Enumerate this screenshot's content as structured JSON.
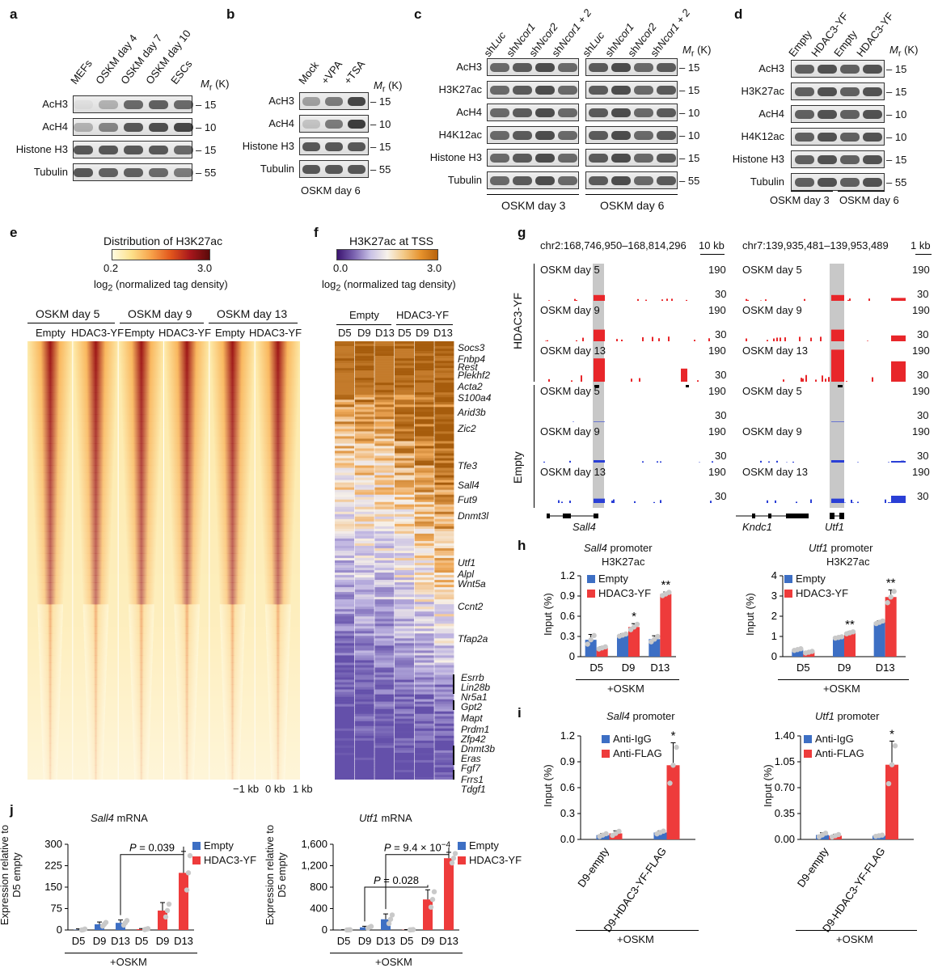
{
  "panels": {
    "a": "a",
    "b": "b",
    "c": "c",
    "d": "d",
    "e": "e",
    "f": "f",
    "g": "g",
    "h": "h",
    "i": "i",
    "j": "j"
  },
  "mr": "M",
  "mr_sub": "r",
  "mr_unit": " (K)",
  "blot_a": {
    "cols": [
      "MEFs",
      "OSKM day 4",
      "OSKM day 7",
      "OSKM day 10",
      "ESCs"
    ],
    "rows": [
      "AcH3",
      "AcH4",
      "Histone H3",
      "Tubulin"
    ],
    "mw": [
      "15",
      "10",
      "15",
      "55"
    ]
  },
  "blot_b": {
    "cols": [
      "Mock",
      "+VPA",
      "+TSA"
    ],
    "rows": [
      "AcH3",
      "AcH4",
      "Histone H3",
      "Tubulin"
    ],
    "mw": [
      "15",
      "10",
      "15",
      "55"
    ],
    "footer": "OSKM day 6"
  },
  "blot_c": {
    "cols": [
      "shLuc",
      "shNcor1",
      "shNcor2",
      "shNcor1 + 2",
      "shLuc",
      "shNcor1",
      "shNcor2",
      "shNcor1 + 2"
    ],
    "rows": [
      "AcH3",
      "H3K27ac",
      "AcH4",
      "H4K12ac",
      "Histone H3",
      "Tubulin"
    ],
    "mw": [
      "15",
      "15",
      "10",
      "10",
      "15",
      "55"
    ],
    "footer": [
      "OSKM day 3",
      "OSKM day 6"
    ]
  },
  "blot_d": {
    "cols": [
      "Empty",
      "HDAC3-YF",
      "Empty",
      "HDAC3-YF"
    ],
    "rows": [
      "AcH3",
      "H3K27ac",
      "AcH4",
      "H4K12ac",
      "Histone H3",
      "Tubulin"
    ],
    "mw": [
      "15",
      "15",
      "10",
      "10",
      "15",
      "55"
    ],
    "footer": [
      "OSKM day 3",
      "OSKM day 6"
    ]
  },
  "heat_e": {
    "title": "Distribution of H3K27ac",
    "scale_min": "0.2",
    "scale_max": "3.0",
    "scale_label_pre": "log",
    "scale_label_sub": "2",
    "scale_label_post": " (normalized tag density)",
    "groups": [
      "OSKM day 5",
      "OSKM day 9",
      "OSKM day 13"
    ],
    "subs": [
      "Empty",
      "HDAC3-YF",
      "Empty",
      "HDAC3-YF",
      "Empty",
      "HDAC3-YF"
    ],
    "xticks": [
      "−1 kb",
      "0 kb",
      "1 kb"
    ]
  },
  "heat_f": {
    "title": "H3K27ac at TSS",
    "scale_min": "0.0",
    "scale_max": "3.0",
    "scale_label_pre": "log",
    "scale_label_sub": "2",
    "scale_label_post": " (normalized tag density)",
    "groups": [
      "Empty",
      "HDAC3-YF"
    ],
    "subs": [
      "D5",
      "D9",
      "D13",
      "D5",
      "D9",
      "D13"
    ],
    "genes": [
      "Socs3",
      "Fnbp4",
      "Rest",
      "Plekhf2",
      "Acta2",
      "S100a4",
      "Arid3b",
      "Zic2",
      "Tfe3",
      "Sall4",
      "Fut9",
      "Dnmt3l",
      "Utf1",
      "Alpl",
      "Wnt5a",
      "Ccnt2",
      "Tfap2a",
      "Esrrb",
      "Lin28b",
      "Nr5a1",
      "Gpt2",
      "Mapt",
      "Prdm1",
      "Zfp42",
      "Dnmt3b",
      "Eras",
      "Fgf7",
      "Frrs1",
      "Tdgf1"
    ]
  },
  "tracks_g": {
    "loci": [
      "chr2:168,746,950–168,814,296",
      "chr7:139,935,481–139,953,489"
    ],
    "scalebars": [
      "10 kb",
      "1 kb"
    ],
    "samples": [
      "OSKM day 5",
      "OSKM day 9",
      "OSKM day 13"
    ],
    "groups": [
      "HDAC3-YF",
      "Empty"
    ],
    "ymax": "190",
    "ymin": "30",
    "genes": [
      "Sall4",
      "Kndc1",
      "Utf1"
    ]
  },
  "chart_data": [
    {
      "type": "bar",
      "panel": "h",
      "title": "Sall4 promoter",
      "subtitle": "H3K27ac",
      "ylabel": "Input (%)",
      "categories": [
        "D5",
        "D9",
        "D13"
      ],
      "ylim": [
        0,
        1.2
      ],
      "yticks": [
        "0",
        "0.3",
        "0.6",
        "0.9",
        "1.2"
      ],
      "series": [
        {
          "name": "Empty",
          "values": [
            0.25,
            0.32,
            0.26
          ]
        },
        {
          "name": "HDAC3-YF",
          "values": [
            0.13,
            0.44,
            0.93
          ]
        }
      ],
      "errors": [
        [
          0.08,
          0.02,
          0.05
        ],
        [
          0.02,
          0.05,
          0.03
        ]
      ],
      "sig": [
        "",
        "*",
        "**"
      ],
      "xlabel": "+OSKM"
    },
    {
      "type": "bar",
      "panel": "h",
      "title": "Utf1 promoter",
      "subtitle": "H3K27ac",
      "ylabel": "Input (%)",
      "categories": [
        "D5",
        "D9",
        "D13"
      ],
      "ylim": [
        0,
        4
      ],
      "yticks": [
        "0",
        "1",
        "2",
        "3",
        "4"
      ],
      "series": [
        {
          "name": "Empty",
          "values": [
            0.35,
            0.95,
            1.7
          ]
        },
        {
          "name": "HDAC3-YF",
          "values": [
            0.22,
            1.18,
            2.95
          ]
        }
      ],
      "errors": [
        [
          0.05,
          0.04,
          0.08
        ],
        [
          0.05,
          0.06,
          0.35
        ]
      ],
      "sig": [
        "",
        "**",
        "**"
      ],
      "xlabel": "+OSKM"
    },
    {
      "type": "bar",
      "panel": "i",
      "title": "Sall4 promoter",
      "ylabel": "Input (%)",
      "categories": [
        "D9-empty",
        "D9-HDAC3-YF-FLAG"
      ],
      "ylim": [
        0,
        1.2
      ],
      "yticks": [
        "0.0",
        "0.3",
        "0.6",
        "0.9",
        "1.2"
      ],
      "series": [
        {
          "name": "Anti-IgG",
          "values": [
            0.05,
            0.08
          ]
        },
        {
          "name": "Anti-FLAG",
          "values": [
            0.07,
            0.86
          ]
        }
      ],
      "errors": [
        [
          0.02,
          0.02
        ],
        [
          0.03,
          0.26
        ]
      ],
      "sig": [
        "",
        "*"
      ],
      "xlabel": "+OSKM"
    },
    {
      "type": "bar",
      "panel": "i",
      "title": "Utf1 promoter",
      "ylabel": "Input (%)",
      "categories": [
        "D9-empty",
        "D9-HDAC3-YF-FLAG"
      ],
      "ylim": [
        0,
        1.4
      ],
      "yticks": [
        "0.00",
        "0.35",
        "0.70",
        "1.05",
        "1.40"
      ],
      "series": [
        {
          "name": "Anti-IgG",
          "values": [
            0.06,
            0.05
          ]
        },
        {
          "name": "Anti-FLAG",
          "values": [
            0.05,
            1.01
          ]
        }
      ],
      "errors": [
        [
          0.03,
          0.01
        ],
        [
          0.02,
          0.32
        ]
      ],
      "sig": [
        "",
        "*"
      ],
      "xlabel": "+OSKM"
    },
    {
      "type": "bar",
      "panel": "j",
      "title": "Sall4 mRNA",
      "ylabel": "Expression relative to D5 empty",
      "categories": [
        "D5",
        "D9",
        "D13",
        "D5",
        "D9",
        "D13"
      ],
      "ylim": [
        0,
        300
      ],
      "yticks": [
        "0",
        "75",
        "150",
        "225",
        "300"
      ],
      "series": [
        {
          "name": "Empty",
          "values": [
            1,
            20,
            25,
            null,
            null,
            null
          ]
        },
        {
          "name": "HDAC3-YF",
          "values": [
            null,
            null,
            null,
            3,
            68,
            200
          ]
        }
      ],
      "errors": [
        3,
        8,
        10,
        2,
        28,
        75
      ],
      "pvals": [
        {
          "text": "P = 0.039",
          "from": 2,
          "to": 5
        }
      ],
      "xlabel": "+OSKM"
    },
    {
      "type": "bar",
      "panel": "j",
      "title": "Utf1 mRNA",
      "ylabel": "Expression relative to D5 empty",
      "categories": [
        "D5",
        "D9",
        "D13",
        "D5",
        "D9",
        "D13"
      ],
      "ylim": [
        0,
        1600
      ],
      "yticks": [
        "0",
        "400",
        "800",
        "1,200",
        "1,600"
      ],
      "series": [
        {
          "name": "Empty",
          "values": [
            2,
            50,
            200,
            null,
            null,
            null
          ]
        },
        {
          "name": "HDAC3-YF",
          "values": [
            null,
            null,
            null,
            5,
            570,
            1340
          ]
        }
      ],
      "errors": [
        3,
        20,
        100,
        3,
        180,
        110
      ],
      "pvals": [
        {
          "text": "P = 9.4 × 10",
          "sup": "−4",
          "from": 2,
          "to": 5
        },
        {
          "text": "P = 0.028",
          "from": 1,
          "to": 4
        }
      ],
      "xlabel": "+OSKM"
    }
  ],
  "colors": {
    "empty": "#3d6fc4",
    "treated": "#ee3b3b",
    "red_track": "#e8262a",
    "blue_track": "#2a3fd6"
  }
}
